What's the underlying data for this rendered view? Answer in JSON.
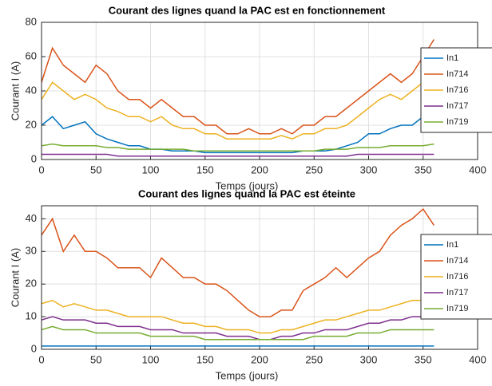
{
  "chart_data": [
    {
      "type": "line",
      "title": "Courant des lignes quand la PAC est en fonctionnement",
      "xlabel": "Temps (jours)",
      "ylabel": "Courant I (A)",
      "x": [
        0,
        10,
        20,
        30,
        40,
        50,
        60,
        70,
        80,
        90,
        100,
        110,
        120,
        130,
        140,
        150,
        160,
        170,
        180,
        190,
        200,
        210,
        220,
        230,
        240,
        250,
        260,
        270,
        280,
        290,
        300,
        310,
        320,
        330,
        340,
        350,
        360
      ],
      "series": [
        {
          "name": "In1",
          "color": "#0072bd",
          "values": [
            20,
            25,
            18,
            20,
            22,
            15,
            12,
            10,
            8,
            8,
            6,
            6,
            5,
            5,
            5,
            4,
            4,
            4,
            4,
            4,
            4,
            4,
            4,
            4,
            5,
            5,
            5,
            6,
            8,
            10,
            15,
            15,
            18,
            20,
            20,
            25,
            30
          ]
        },
        {
          "name": "In714",
          "color": "#d95319",
          "values": [
            45,
            65,
            55,
            50,
            45,
            55,
            50,
            40,
            35,
            35,
            30,
            35,
            30,
            25,
            25,
            20,
            20,
            15,
            15,
            18,
            15,
            15,
            18,
            15,
            20,
            20,
            25,
            25,
            30,
            35,
            40,
            45,
            50,
            45,
            50,
            60,
            70
          ]
        },
        {
          "name": "In716",
          "color": "#edb120",
          "values": [
            35,
            45,
            40,
            35,
            38,
            35,
            30,
            28,
            25,
            25,
            22,
            25,
            20,
            18,
            18,
            15,
            15,
            12,
            12,
            12,
            12,
            12,
            14,
            12,
            15,
            15,
            18,
            18,
            20,
            25,
            30,
            35,
            38,
            35,
            40,
            45,
            50
          ]
        },
        {
          "name": "In717",
          "color": "#7e2f8e",
          "values": [
            3,
            3,
            3,
            3,
            3,
            3,
            3,
            2,
            2,
            2,
            2,
            2,
            2,
            2,
            2,
            2,
            2,
            2,
            2,
            2,
            2,
            2,
            2,
            2,
            2,
            2,
            2,
            2,
            2,
            3,
            3,
            3,
            3,
            3,
            3,
            3,
            3
          ]
        },
        {
          "name": "In719",
          "color": "#77ac30",
          "values": [
            8,
            9,
            8,
            8,
            8,
            8,
            7,
            7,
            6,
            6,
            6,
            6,
            6,
            6,
            5,
            5,
            5,
            5,
            5,
            5,
            5,
            5,
            5,
            5,
            5,
            5,
            6,
            6,
            6,
            7,
            7,
            7,
            8,
            8,
            8,
            8,
            9
          ]
        }
      ],
      "xlim": [
        0,
        400
      ],
      "xticks": [
        0,
        50,
        100,
        150,
        200,
        250,
        300,
        350,
        400
      ],
      "ylim": [
        0,
        80
      ],
      "yticks": [
        0,
        20,
        40,
        60,
        80
      ],
      "grid": true,
      "legend": "right"
    },
    {
      "type": "line",
      "title": "Courant des lignes quand la PAC est éteinte",
      "xlabel": "Temps (jours)",
      "ylabel": "Courant I (A)",
      "x": [
        0,
        10,
        20,
        30,
        40,
        50,
        60,
        70,
        80,
        90,
        100,
        110,
        120,
        130,
        140,
        150,
        160,
        170,
        180,
        190,
        200,
        210,
        220,
        230,
        240,
        250,
        260,
        270,
        280,
        290,
        300,
        310,
        320,
        330,
        340,
        350,
        360
      ],
      "series": [
        {
          "name": "In1",
          "color": "#0072bd",
          "values": [
            1,
            1,
            1,
            1,
            1,
            1,
            1,
            1,
            1,
            1,
            1,
            1,
            1,
            1,
            1,
            1,
            1,
            1,
            1,
            1,
            1,
            1,
            1,
            1,
            1,
            1,
            1,
            1,
            1,
            1,
            1,
            1,
            1,
            1,
            1,
            1,
            1
          ]
        },
        {
          "name": "In714",
          "color": "#d95319",
          "values": [
            35,
            40,
            30,
            35,
            30,
            30,
            28,
            25,
            25,
            25,
            22,
            28,
            25,
            22,
            22,
            20,
            20,
            18,
            15,
            12,
            10,
            10,
            12,
            12,
            18,
            20,
            22,
            25,
            22,
            25,
            28,
            30,
            35,
            38,
            40,
            43,
            38
          ]
        },
        {
          "name": "In716",
          "color": "#edb120",
          "values": [
            14,
            15,
            13,
            14,
            13,
            12,
            12,
            11,
            10,
            10,
            10,
            10,
            9,
            8,
            8,
            7,
            7,
            6,
            6,
            6,
            5,
            5,
            6,
            6,
            7,
            8,
            9,
            9,
            10,
            11,
            12,
            12,
            13,
            14,
            15,
            15,
            15
          ]
        },
        {
          "name": "In717",
          "color": "#7e2f8e",
          "values": [
            9,
            10,
            9,
            9,
            9,
            8,
            8,
            7,
            7,
            7,
            6,
            6,
            6,
            5,
            5,
            5,
            5,
            4,
            4,
            4,
            3,
            3,
            4,
            4,
            5,
            5,
            6,
            6,
            6,
            7,
            8,
            8,
            9,
            9,
            10,
            10,
            10
          ]
        },
        {
          "name": "In719",
          "color": "#77ac30",
          "values": [
            6,
            7,
            6,
            6,
            6,
            5,
            5,
            5,
            5,
            5,
            4,
            4,
            4,
            4,
            4,
            3,
            3,
            3,
            3,
            3,
            3,
            3,
            3,
            3,
            3,
            4,
            4,
            4,
            4,
            5,
            5,
            5,
            6,
            6,
            6,
            6,
            6
          ]
        }
      ],
      "xlim": [
        0,
        400
      ],
      "xticks": [
        0,
        50,
        100,
        150,
        200,
        250,
        300,
        350,
        400
      ],
      "ylim": [
        0,
        44
      ],
      "yticks": [
        0,
        10,
        20,
        30,
        40
      ],
      "grid": true,
      "legend": "right"
    }
  ]
}
